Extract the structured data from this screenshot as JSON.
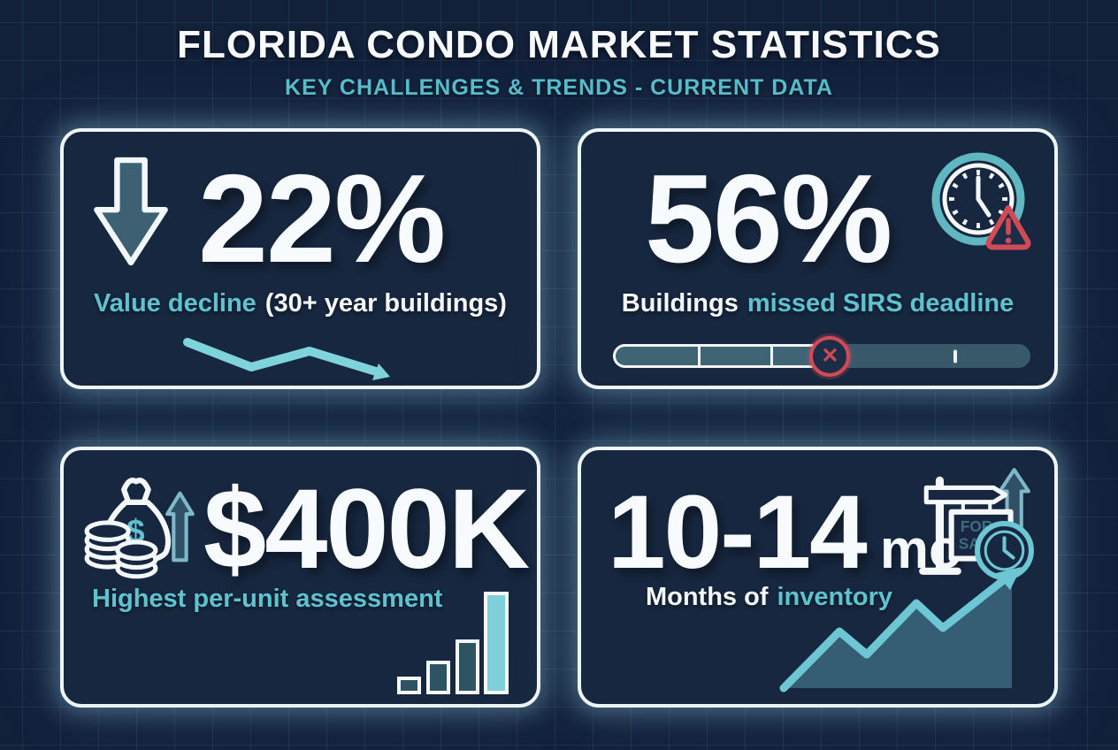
{
  "header": {
    "title": "FLORIDA CONDO MARKET STATISTICS",
    "subtitle": "KEY CHALLENGES & TRENDS - CURRENT DATA"
  },
  "colors": {
    "background": "#12203a",
    "card_background": "#17273f",
    "card_border": "#eef5f9",
    "accent_teal": "#5ec2cf",
    "trend_teal": "#7fd4dc",
    "dark_teal_fill": "#3d6173",
    "alert_red": "#d14b57",
    "text_white": "#f5f8fb"
  },
  "cards": [
    {
      "id": "value-decline",
      "value": "22%",
      "label_accent": "Value decline",
      "label_plain": "(30+ year buildings)",
      "icon": "down-arrow-icon",
      "trend": "down"
    },
    {
      "id": "sirs-deadline",
      "value": "56%",
      "label_plain": "Buildings",
      "label_accent": "missed SIRS deadline",
      "icon": "clock-warning-icon",
      "progress_percent": 52,
      "tick_percent": 82,
      "x_marker_glyph": "✕"
    },
    {
      "id": "per-unit-assessment",
      "value": "$400K",
      "label_accent": "Highest per-unit assessment",
      "icon": "money-bag-icon",
      "currency_glyph": "$",
      "mini_bar_heights": [
        16,
        34,
        58,
        112
      ],
      "trend": "up"
    },
    {
      "id": "months-inventory",
      "value": "10-14",
      "value_suffix": "mo",
      "label_plain": "Months of",
      "label_accent": "inventory",
      "icon": "for-sale-sign-icon",
      "sign_line1": "FOR",
      "sign_line2": "SAL",
      "trend": "up"
    }
  ],
  "chart_data": {
    "type": "table",
    "title": "FLORIDA CONDO MARKET STATISTICS",
    "subtitle": "KEY CHALLENGES & TRENDS - CURRENT DATA",
    "rows": [
      {
        "stat": "22%",
        "description": "Value decline (30+ year buildings)",
        "direction": "down"
      },
      {
        "stat": "56%",
        "description": "Buildings missed SIRS deadline",
        "progress_marker_percent": 52,
        "tick_percent": 82
      },
      {
        "stat": "$400K",
        "description": "Highest per-unit assessment",
        "direction": "up",
        "mini_bar_values_relative": [
          16,
          34,
          58,
          112
        ]
      },
      {
        "stat": "10-14 mo",
        "description": "Months of inventory",
        "direction": "up"
      }
    ],
    "legend_position": "none",
    "grid": true
  }
}
